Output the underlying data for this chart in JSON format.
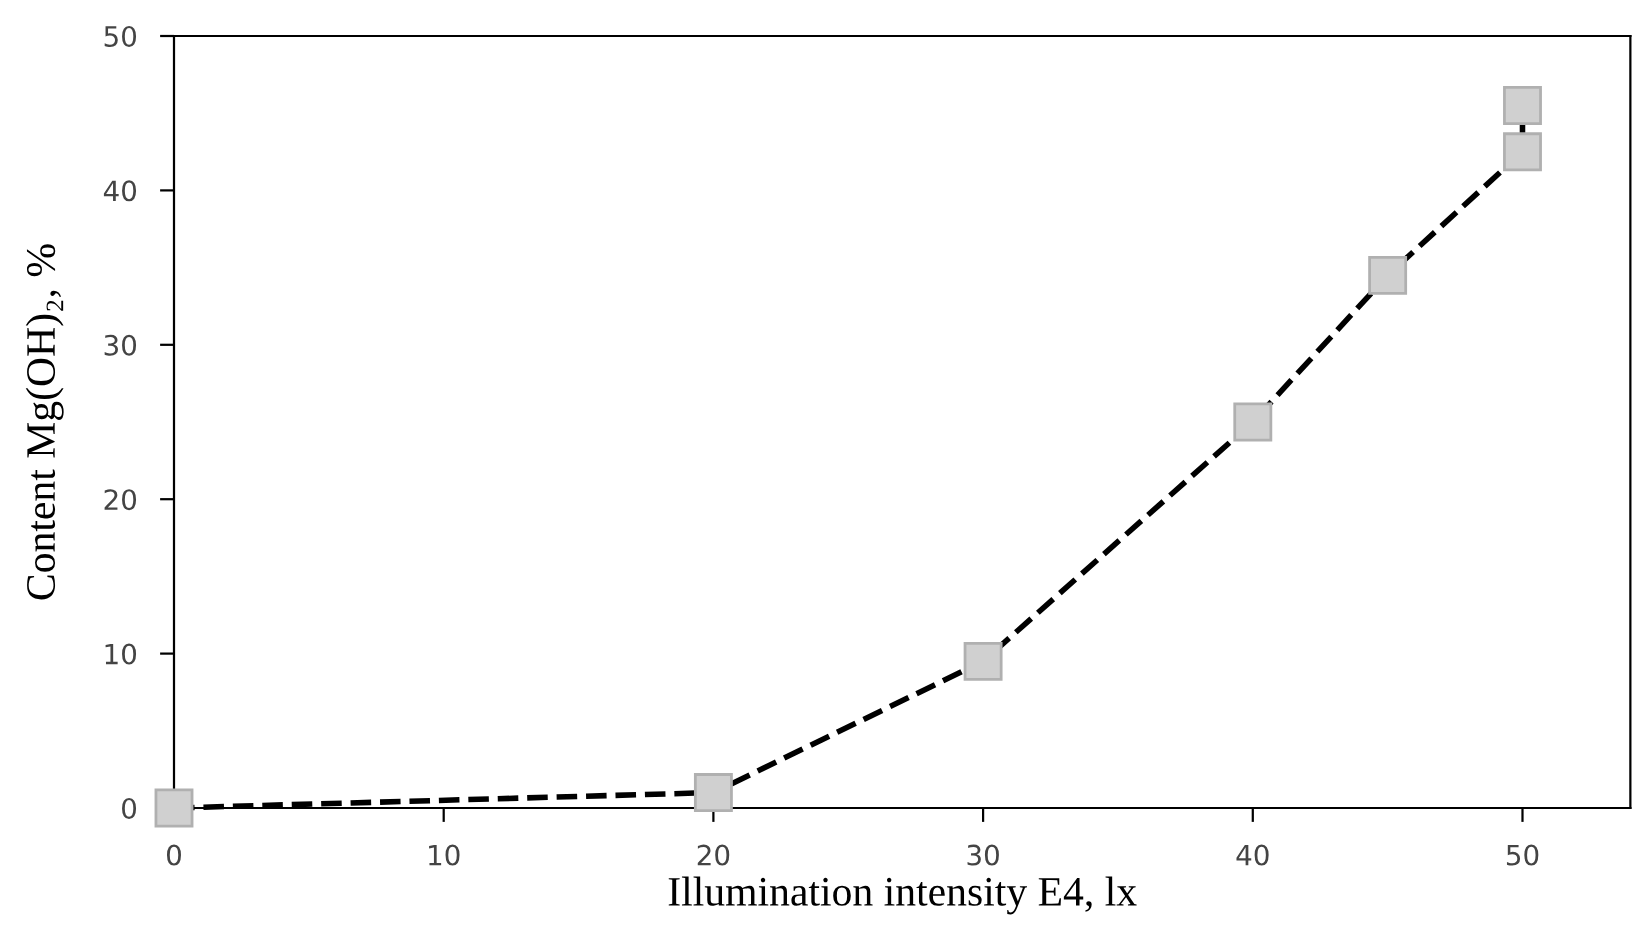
{
  "chart_data": {
    "type": "line",
    "xlabel": "Illumination intensity E4, lx",
    "ylabel": "Content Mg(OH)₂, %",
    "xlim": [
      0,
      54
    ],
    "xticks": [
      0,
      10,
      20,
      30,
      40,
      50
    ],
    "ylim": [
      0,
      50
    ],
    "yticks": [
      0,
      10,
      20,
      30,
      40,
      50
    ],
    "grid": false,
    "legend": false,
    "marker": "square",
    "line_style": "dashed",
    "series": [
      {
        "color": "#000000",
        "x": [
          0,
          20,
          30,
          40,
          45,
          50,
          50
        ],
        "values": [
          0,
          1,
          9.5,
          25,
          34.5,
          42.5,
          45.5
        ]
      }
    ]
  }
}
